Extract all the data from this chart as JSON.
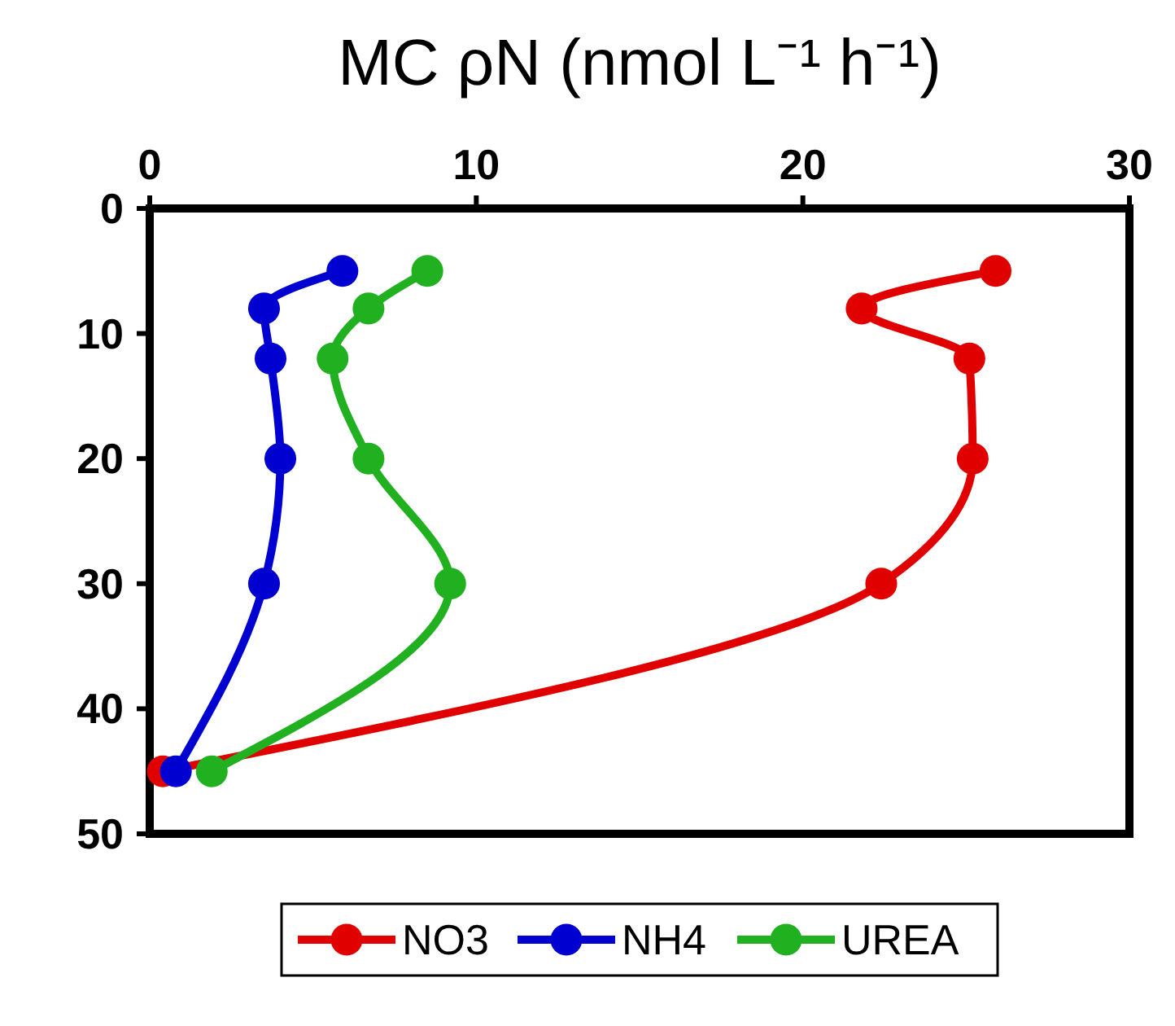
{
  "chart_data": {
    "type": "line",
    "title": "MC ρN (nmol L⁻¹ h⁻¹)",
    "series": [
      {
        "name": "NO3",
        "color": "#e00000",
        "x": [
          25.9,
          21.8,
          25.1,
          25.2,
          22.4,
          0.4
        ],
        "values": [
          5,
          8,
          12,
          20,
          30,
          45
        ]
      },
      {
        "name": "NH4",
        "color": "#0000d0",
        "x": [
          5.9,
          3.5,
          3.7,
          4.0,
          3.5,
          0.8
        ],
        "values": [
          5,
          8,
          12,
          20,
          30,
          45
        ]
      },
      {
        "name": "UREA",
        "color": "#20b020",
        "x": [
          8.5,
          6.7,
          5.6,
          6.7,
          9.2,
          1.9
        ],
        "values": [
          5,
          8,
          12,
          20,
          30,
          45
        ]
      }
    ],
    "xlim": [
      0,
      30
    ],
    "xticks": [
      0,
      10,
      20,
      30
    ],
    "ylim": [
      50,
      0
    ],
    "yticks": [
      0,
      10,
      20,
      30,
      40,
      50
    ],
    "grid": false,
    "legend": "bottom",
    "marker": "circle",
    "line_style": "solid"
  }
}
